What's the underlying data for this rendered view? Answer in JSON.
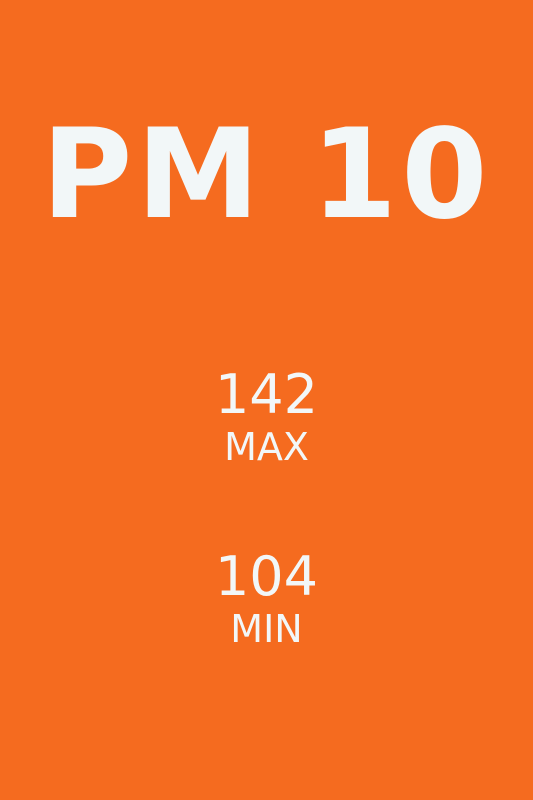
{
  "screen": {
    "title": "PM 10",
    "background_color": "#f56b1f",
    "text_color": "#f2f7f8"
  },
  "stats": {
    "max": {
      "value": "142",
      "label": "MAX"
    },
    "min": {
      "value": "104",
      "label": "MIN"
    }
  }
}
